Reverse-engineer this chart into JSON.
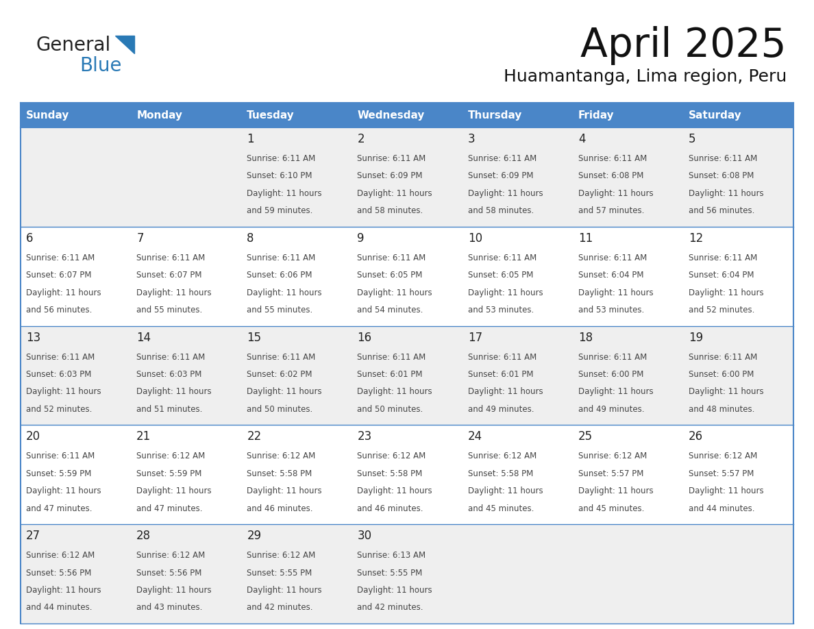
{
  "title": "April 2025",
  "subtitle": "Huamantanga, Lima region, Peru",
  "header_color": "#4a86c8",
  "header_text_color": "#ffffff",
  "cell_bg_white": "#ffffff",
  "cell_bg_gray": "#efefef",
  "border_color": "#4a86c8",
  "text_color": "#444444",
  "day_number_color": "#222222",
  "days_of_week": [
    "Sunday",
    "Monday",
    "Tuesday",
    "Wednesday",
    "Thursday",
    "Friday",
    "Saturday"
  ],
  "logo_color_general": "#222222",
  "logo_color_blue": "#2979b5",
  "logo_tri_color": "#2979b5",
  "weeks": [
    [
      {
        "day": "",
        "sunrise": "",
        "sunset": "",
        "daylight_h": "",
        "daylight_m": ""
      },
      {
        "day": "",
        "sunrise": "",
        "sunset": "",
        "daylight_h": "",
        "daylight_m": ""
      },
      {
        "day": "1",
        "sunrise": "6:11 AM",
        "sunset": "6:10 PM",
        "daylight_h": "11",
        "daylight_m": "59"
      },
      {
        "day": "2",
        "sunrise": "6:11 AM",
        "sunset": "6:09 PM",
        "daylight_h": "11",
        "daylight_m": "58"
      },
      {
        "day": "3",
        "sunrise": "6:11 AM",
        "sunset": "6:09 PM",
        "daylight_h": "11",
        "daylight_m": "58"
      },
      {
        "day": "4",
        "sunrise": "6:11 AM",
        "sunset": "6:08 PM",
        "daylight_h": "11",
        "daylight_m": "57"
      },
      {
        "day": "5",
        "sunrise": "6:11 AM",
        "sunset": "6:08 PM",
        "daylight_h": "11",
        "daylight_m": "56"
      }
    ],
    [
      {
        "day": "6",
        "sunrise": "6:11 AM",
        "sunset": "6:07 PM",
        "daylight_h": "11",
        "daylight_m": "56"
      },
      {
        "day": "7",
        "sunrise": "6:11 AM",
        "sunset": "6:07 PM",
        "daylight_h": "11",
        "daylight_m": "55"
      },
      {
        "day": "8",
        "sunrise": "6:11 AM",
        "sunset": "6:06 PM",
        "daylight_h": "11",
        "daylight_m": "55"
      },
      {
        "day": "9",
        "sunrise": "6:11 AM",
        "sunset": "6:05 PM",
        "daylight_h": "11",
        "daylight_m": "54"
      },
      {
        "day": "10",
        "sunrise": "6:11 AM",
        "sunset": "6:05 PM",
        "daylight_h": "11",
        "daylight_m": "53"
      },
      {
        "day": "11",
        "sunrise": "6:11 AM",
        "sunset": "6:04 PM",
        "daylight_h": "11",
        "daylight_m": "53"
      },
      {
        "day": "12",
        "sunrise": "6:11 AM",
        "sunset": "6:04 PM",
        "daylight_h": "11",
        "daylight_m": "52"
      }
    ],
    [
      {
        "day": "13",
        "sunrise": "6:11 AM",
        "sunset": "6:03 PM",
        "daylight_h": "11",
        "daylight_m": "52"
      },
      {
        "day": "14",
        "sunrise": "6:11 AM",
        "sunset": "6:03 PM",
        "daylight_h": "11",
        "daylight_m": "51"
      },
      {
        "day": "15",
        "sunrise": "6:11 AM",
        "sunset": "6:02 PM",
        "daylight_h": "11",
        "daylight_m": "50"
      },
      {
        "day": "16",
        "sunrise": "6:11 AM",
        "sunset": "6:01 PM",
        "daylight_h": "11",
        "daylight_m": "50"
      },
      {
        "day": "17",
        "sunrise": "6:11 AM",
        "sunset": "6:01 PM",
        "daylight_h": "11",
        "daylight_m": "49"
      },
      {
        "day": "18",
        "sunrise": "6:11 AM",
        "sunset": "6:00 PM",
        "daylight_h": "11",
        "daylight_m": "49"
      },
      {
        "day": "19",
        "sunrise": "6:11 AM",
        "sunset": "6:00 PM",
        "daylight_h": "11",
        "daylight_m": "48"
      }
    ],
    [
      {
        "day": "20",
        "sunrise": "6:11 AM",
        "sunset": "5:59 PM",
        "daylight_h": "11",
        "daylight_m": "47"
      },
      {
        "day": "21",
        "sunrise": "6:12 AM",
        "sunset": "5:59 PM",
        "daylight_h": "11",
        "daylight_m": "47"
      },
      {
        "day": "22",
        "sunrise": "6:12 AM",
        "sunset": "5:58 PM",
        "daylight_h": "11",
        "daylight_m": "46"
      },
      {
        "day": "23",
        "sunrise": "6:12 AM",
        "sunset": "5:58 PM",
        "daylight_h": "11",
        "daylight_m": "46"
      },
      {
        "day": "24",
        "sunrise": "6:12 AM",
        "sunset": "5:58 PM",
        "daylight_h": "11",
        "daylight_m": "45"
      },
      {
        "day": "25",
        "sunrise": "6:12 AM",
        "sunset": "5:57 PM",
        "daylight_h": "11",
        "daylight_m": "45"
      },
      {
        "day": "26",
        "sunrise": "6:12 AM",
        "sunset": "5:57 PM",
        "daylight_h": "11",
        "daylight_m": "44"
      }
    ],
    [
      {
        "day": "27",
        "sunrise": "6:12 AM",
        "sunset": "5:56 PM",
        "daylight_h": "11",
        "daylight_m": "44"
      },
      {
        "day": "28",
        "sunrise": "6:12 AM",
        "sunset": "5:56 PM",
        "daylight_h": "11",
        "daylight_m": "43"
      },
      {
        "day": "29",
        "sunrise": "6:12 AM",
        "sunset": "5:55 PM",
        "daylight_h": "11",
        "daylight_m": "42"
      },
      {
        "day": "30",
        "sunrise": "6:13 AM",
        "sunset": "5:55 PM",
        "daylight_h": "11",
        "daylight_m": "42"
      },
      {
        "day": "",
        "sunrise": "",
        "sunset": "",
        "daylight_h": "",
        "daylight_m": ""
      },
      {
        "day": "",
        "sunrise": "",
        "sunset": "",
        "daylight_h": "",
        "daylight_m": ""
      },
      {
        "day": "",
        "sunrise": "",
        "sunset": "",
        "daylight_h": "",
        "daylight_m": ""
      }
    ]
  ]
}
